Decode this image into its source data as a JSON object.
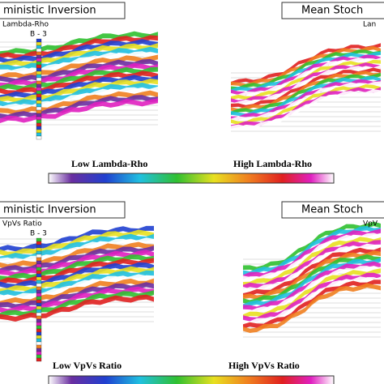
{
  "panels": [
    {
      "left_title": "ministic Inversion",
      "left_label": "Lambda-Rho",
      "well": "B - 3",
      "right_title": "Mean Stoch",
      "right_label": "Lan",
      "low": "Low Lambda-Rho",
      "high": "High Lambda-Rho"
    },
    {
      "left_title": "ministic Inversion",
      "left_label": "VpVs Ratio",
      "well": "B - 3",
      "right_title": "Mean Stoch",
      "right_label": "VpV",
      "low": "Low VpVs Ratio",
      "high": "High VpVs Ratio"
    }
  ]
}
